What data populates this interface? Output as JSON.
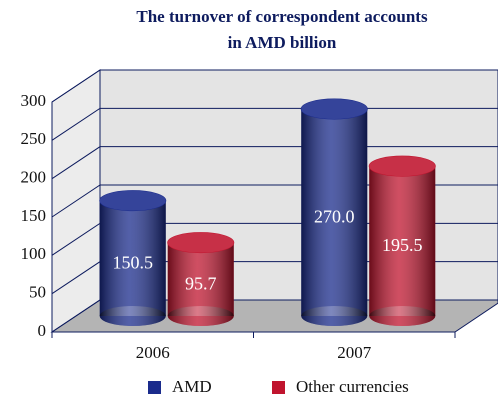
{
  "chart_data": {
    "type": "bar3d",
    "title": "The turnover of correspondent accounts",
    "subtitle": "in AMD billion",
    "categories": [
      "2006",
      "2007"
    ],
    "series": [
      {
        "name": "AMD",
        "color": "#1a2b8c",
        "values": [
          150.5,
          270
        ],
        "value_labels": [
          "150.5",
          "270.0"
        ]
      },
      {
        "name": "Other currencies",
        "color": "#c0142e",
        "values": [
          95.7,
          195.5
        ]
      }
    ],
    "ylim": [
      0,
      300
    ],
    "yticks": [
      0,
      50,
      100,
      150,
      200,
      250,
      300
    ],
    "grid": true,
    "legend": "bottom"
  }
}
